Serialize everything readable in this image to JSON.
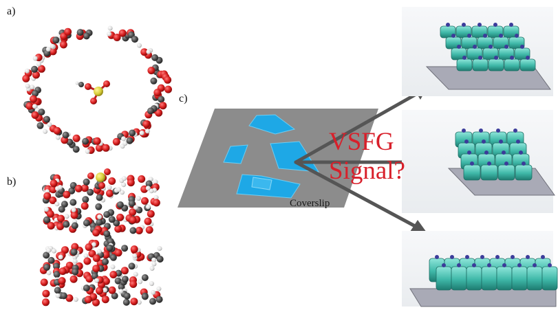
{
  "panel_labels": {
    "a": "a)",
    "b": "b)",
    "c": "c)"
  },
  "figure_text": {
    "signal_line1": "VSFG",
    "signal_line2": "Signal?",
    "coverslip_label": "Coverslip"
  },
  "colors": {
    "oxygen": "#d41b1b",
    "carbon": "#4a4a4a",
    "hydrogen": "#e6e6e6",
    "sulfur": "#d9cf3a",
    "substrate": "#8c8c8c",
    "crystal": "#1ea8e6",
    "arrow": "#555555",
    "signal_text": "#d81f2a",
    "assembly": "#3fb8a8",
    "end_group": "#3c3c9a"
  },
  "icons": [
    "sulfate-molecule-icon",
    "arrow-icon"
  ]
}
